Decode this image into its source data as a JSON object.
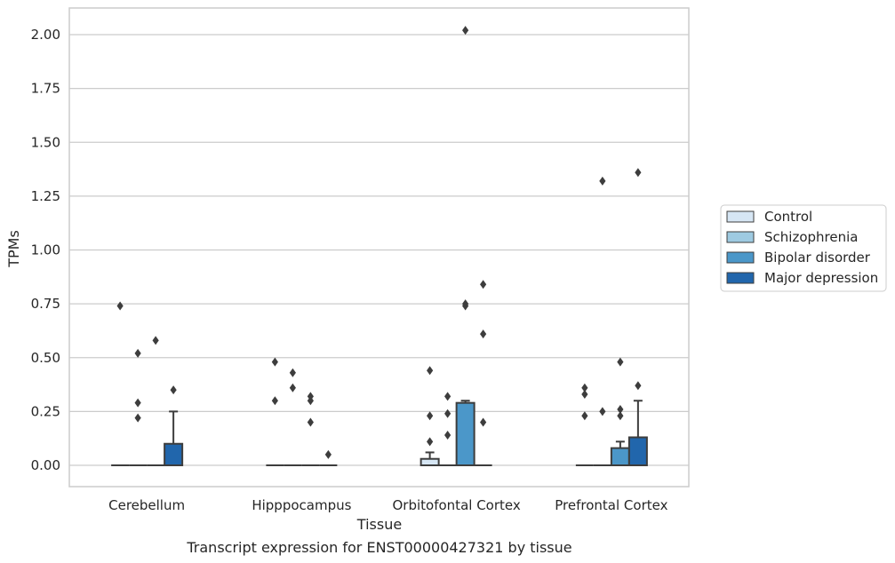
{
  "caption": "Transcript expression for ENST00000427321 by tissue",
  "chart_data": {
    "type": "box",
    "xlabel": "Tissue",
    "ylabel": "TPMs",
    "ylim": [
      -0.1,
      2.12
    ],
    "yticks": [
      "0.00",
      "0.25",
      "0.50",
      "0.75",
      "1.00",
      "1.25",
      "1.50",
      "1.75",
      "2.00"
    ],
    "ytick_values": [
      0,
      0.25,
      0.5,
      0.75,
      1.0,
      1.25,
      1.5,
      1.75,
      2.0
    ],
    "grid": "horizontal",
    "legend_position": "right",
    "categories": [
      "Cerebellum",
      "Hipppocampus",
      "Orbitofontal Cortex",
      "Prefrontal Cortex"
    ],
    "series": [
      {
        "name": "Control",
        "color": "#d6e6f4",
        "boxes": [
          {
            "q1": 0,
            "median": 0,
            "q3": 0,
            "whisker_low": 0,
            "whisker_high": 0,
            "outliers": [
              0.74
            ]
          },
          {
            "q1": 0,
            "median": 0,
            "q3": 0,
            "whisker_low": 0,
            "whisker_high": 0,
            "outliers": [
              0.48,
              0.3
            ]
          },
          {
            "q1": 0,
            "median": 0,
            "q3": 0.03,
            "whisker_low": 0,
            "whisker_high": 0.06,
            "outliers": [
              0.44,
              0.23,
              0.11
            ]
          },
          {
            "q1": 0,
            "median": 0,
            "q3": 0,
            "whisker_low": 0,
            "whisker_high": 0,
            "outliers": [
              0.36,
              0.33,
              0.23
            ]
          }
        ]
      },
      {
        "name": "Schizophrenia",
        "color": "#9ecae1",
        "boxes": [
          {
            "q1": 0,
            "median": 0,
            "q3": 0,
            "whisker_low": 0,
            "whisker_high": 0,
            "outliers": [
              0.52,
              0.29,
              0.22
            ]
          },
          {
            "q1": 0,
            "median": 0,
            "q3": 0,
            "whisker_low": 0,
            "whisker_high": 0,
            "outliers": [
              0.43,
              0.36
            ]
          },
          {
            "q1": 0,
            "median": 0,
            "q3": 0,
            "whisker_low": 0,
            "whisker_high": 0,
            "outliers": [
              0.32,
              0.24,
              0.14
            ]
          },
          {
            "q1": 0,
            "median": 0,
            "q3": 0,
            "whisker_low": 0,
            "whisker_high": 0,
            "outliers": [
              1.32,
              0.25
            ]
          }
        ]
      },
      {
        "name": "Bipolar disorder",
        "color": "#4b97c9",
        "boxes": [
          {
            "q1": 0,
            "median": 0,
            "q3": 0,
            "whisker_low": 0,
            "whisker_high": 0,
            "outliers": [
              0.58
            ]
          },
          {
            "q1": 0,
            "median": 0,
            "q3": 0,
            "whisker_low": 0,
            "whisker_high": 0,
            "outliers": [
              0.32,
              0.3,
              0.2
            ]
          },
          {
            "q1": 0,
            "median": 0,
            "q3": 0.29,
            "whisker_low": 0,
            "whisker_high": 0.3,
            "outliers": [
              2.02,
              0.75,
              0.74
            ]
          },
          {
            "q1": 0,
            "median": 0,
            "q3": 0.08,
            "whisker_low": 0,
            "whisker_high": 0.11,
            "outliers": [
              0.48,
              0.26,
              0.23
            ]
          }
        ]
      },
      {
        "name": "Major depression",
        "color": "#2166ac",
        "boxes": [
          {
            "q1": 0,
            "median": 0,
            "q3": 0.1,
            "whisker_low": 0,
            "whisker_high": 0.25,
            "outliers": [
              0.35
            ]
          },
          {
            "q1": 0,
            "median": 0,
            "q3": 0,
            "whisker_low": 0,
            "whisker_high": 0,
            "outliers": [
              0.05
            ]
          },
          {
            "q1": 0,
            "median": 0,
            "q3": 0,
            "whisker_low": 0,
            "whisker_high": 0,
            "outliers": [
              0.84,
              0.61,
              0.2
            ]
          },
          {
            "q1": 0,
            "median": 0,
            "q3": 0.13,
            "whisker_low": 0,
            "whisker_high": 0.3,
            "outliers": [
              1.36,
              0.37
            ]
          }
        ]
      }
    ]
  }
}
